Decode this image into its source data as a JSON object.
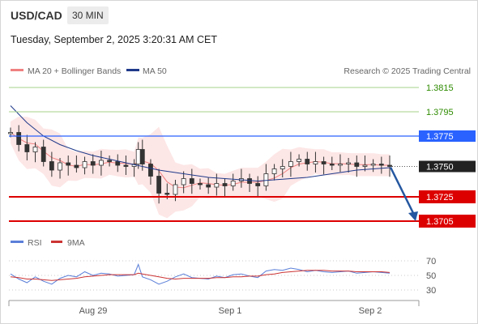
{
  "header": {
    "symbol": "USD/CAD",
    "timeframe": "30 MIN",
    "timestamp": "Tuesday, September 2, 2025 3:20:31 AM CET"
  },
  "legend": {
    "ma20_label": "MA 20 + Bollinger Bands",
    "ma50_label": "MA 50",
    "credit": "Research © 2025 Trading Central"
  },
  "rsi_legend": {
    "rsi_label": "RSI",
    "ma_label": "9MA"
  },
  "colors": {
    "ma20": "#f08080",
    "ma50": "#1f3a8a",
    "band_fill": "#fde2e2",
    "candle_dark": "#333333",
    "candle_light": "#ffffff",
    "target_green": "#2e8b00",
    "pivot_blue": "#2962ff",
    "support_red": "#dd0000",
    "arrow": "#2457a0",
    "rsi_line": "#5b7fd8",
    "rsi_ma": "#cc3333"
  },
  "chart_data": {
    "type": "candlestick",
    "x_tick_labels": [
      "Aug 29",
      "Sep 1",
      "Sep 2"
    ],
    "price_ylim": [
      1.3695,
      1.3835
    ],
    "levels": [
      {
        "value": "1.3815",
        "role": "resistance-2",
        "color": "#2e8b00"
      },
      {
        "value": "1.3795",
        "role": "resistance-1",
        "color": "#2e8b00"
      },
      {
        "value": "1.3775",
        "role": "pivot",
        "color": "#2962ff"
      },
      {
        "value": "1.3750",
        "role": "last",
        "color": "#222222"
      },
      {
        "value": "1.3725",
        "role": "support-1",
        "color": "#dd0000"
      },
      {
        "value": "1.3705",
        "role": "support-2",
        "color": "#dd0000"
      }
    ],
    "price_series": {
      "x": [
        0,
        10,
        20,
        30,
        40,
        50,
        60,
        70,
        80,
        90,
        100,
        110,
        120,
        130,
        140,
        150,
        155,
        160,
        170,
        180,
        190,
        200,
        210,
        220,
        230,
        240,
        250,
        260,
        270,
        280,
        290,
        300,
        310,
        320,
        330,
        340,
        350,
        360,
        370,
        380,
        390,
        400,
        410,
        420,
        430,
        440,
        450,
        460
      ],
      "close": [
        1.3778,
        1.3768,
        1.3762,
        1.3766,
        1.3754,
        1.3747,
        1.3753,
        1.3751,
        1.3749,
        1.3754,
        1.3751,
        1.3755,
        1.3754,
        1.3751,
        1.375,
        1.3752,
        1.3764,
        1.3752,
        1.3742,
        1.3728,
        1.3727,
        1.3735,
        1.374,
        1.3736,
        1.3735,
        1.3733,
        1.3736,
        1.3734,
        1.3738,
        1.374,
        1.3736,
        1.3734,
        1.3744,
        1.3748,
        1.375,
        1.3754,
        1.3756,
        1.3752,
        1.3754,
        1.3752,
        1.3751,
        1.3752,
        1.3753,
        1.375,
        1.3751,
        1.3752,
        1.3751,
        1.375
      ]
    },
    "ma50_series": {
      "x": [
        0,
        20,
        40,
        60,
        80,
        100,
        120,
        140,
        160,
        180,
        200,
        220,
        240,
        260,
        280,
        300,
        320,
        340,
        360,
        380,
        400,
        420,
        440,
        460
      ],
      "values": [
        1.38,
        1.3786,
        1.3775,
        1.3768,
        1.3763,
        1.3759,
        1.3756,
        1.3753,
        1.375,
        1.3747,
        1.3745,
        1.3743,
        1.3741,
        1.374,
        1.3739,
        1.3738,
        1.3739,
        1.374,
        1.3741,
        1.3743,
        1.3745,
        1.3747,
        1.3748,
        1.3749
      ]
    },
    "rsi": {
      "ticks": [
        70,
        50,
        30
      ],
      "ylim": [
        25,
        75
      ],
      "values": [
        52,
        45,
        40,
        48,
        42,
        38,
        46,
        50,
        48,
        55,
        50,
        53,
        52,
        49,
        50,
        51,
        65,
        48,
        44,
        38,
        42,
        48,
        52,
        47,
        46,
        45,
        49,
        47,
        51,
        52,
        49,
        47,
        56,
        58,
        57,
        60,
        58,
        55,
        57,
        55,
        54,
        55,
        56,
        53,
        54,
        55,
        54,
        53
      ],
      "ma9": [
        48,
        47,
        45,
        45,
        44,
        43,
        44,
        45,
        46,
        48,
        49,
        50,
        51,
        51,
        51,
        51,
        53,
        52,
        50,
        48,
        46,
        45,
        46,
        46,
        46,
        46,
        47,
        47,
        48,
        48,
        49,
        49,
        51,
        52,
        54,
        55,
        56,
        57,
        57,
        57,
        56,
        56,
        56,
        55,
        55,
        55,
        55,
        54
      ]
    }
  }
}
